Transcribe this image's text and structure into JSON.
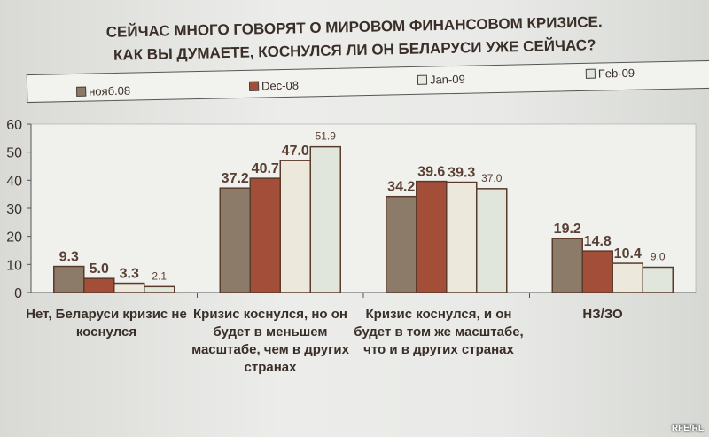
{
  "chart_data": {
    "type": "bar",
    "title": [
      "СЕЙЧАС МНОГО ГОВОРЯТ О МИРОВОМ ФИНАНСОВОМ КРИЗИСЕ.",
      "КАК ВЫ ДУМАЕТЕ, КОСНУЛСЯ ЛИ ОН БЕЛАРУСИ УЖЕ СЕЙЧАС?"
    ],
    "categories": [
      "Нет,  Беларуси кризис не коснулся",
      "Кризис коснулся, но он будет в меньшем масштабе, чем в других странах",
      "Кризис коснулся, и он будет в том же масштабе, что и в других странах",
      "НЗ/ЗО"
    ],
    "series": [
      {
        "name": "нояб.08",
        "color": "#8c7b68",
        "values": [
          9.3,
          37.2,
          34.2,
          19.2
        ]
      },
      {
        "name": "Dec-08",
        "color": "#a24e38",
        "values": [
          5.0,
          40.7,
          39.6,
          14.8
        ]
      },
      {
        "name": "Jan-09",
        "color": "#ece9dc",
        "values": [
          3.3,
          47.0,
          39.3,
          10.4
        ]
      },
      {
        "name": "Feb-09",
        "color": "#e1e6dc",
        "values": [
          2.1,
          51.9,
          37.0,
          9.0
        ]
      }
    ],
    "data_labels": [
      [
        "9.3",
        "5.0",
        "3.3",
        "2.1"
      ],
      [
        "37.2",
        "40.7",
        "47.0",
        "51.9"
      ],
      [
        "34.2",
        "39.6",
        "39.3",
        "37.0"
      ],
      [
        "19.2",
        "14.8",
        "10.4",
        "9.0"
      ]
    ],
    "ylim": [
      0,
      60
    ],
    "yticks": [
      "0",
      "10",
      "20",
      "30",
      "40",
      "50",
      "60"
    ],
    "legend_position": "top",
    "grid": false
  },
  "watermark": "RFE/RL"
}
